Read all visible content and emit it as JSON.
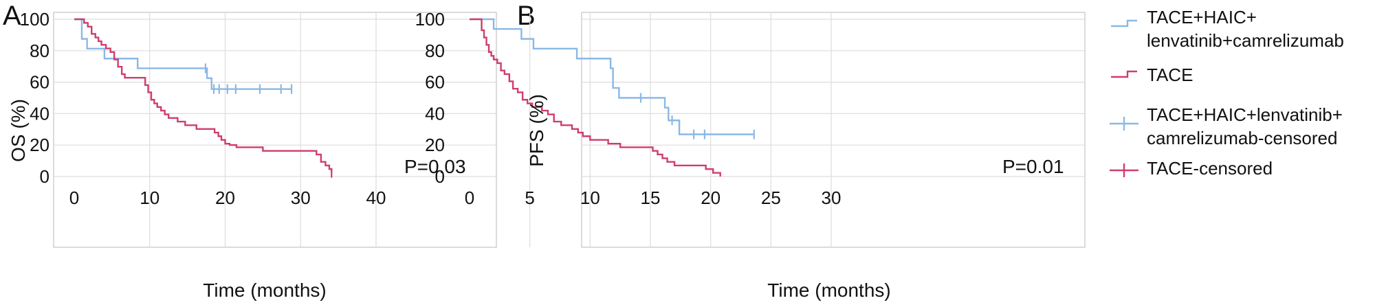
{
  "colors": {
    "combo": "#8ab8e6",
    "tace": "#cf3d6b"
  },
  "legend": [
    {
      "label": "TACE+HAIC+\nlenvatinib+camrelizumab",
      "series": "combo",
      "kind": "line"
    },
    {
      "label": "TACE",
      "series": "tace",
      "kind": "line"
    },
    {
      "label": "TACE+HAIC+lenvatinib+\ncamrelizumab-censored",
      "series": "combo",
      "kind": "censor"
    },
    {
      "label": "TACE-censored",
      "series": "tace",
      "kind": "censor"
    }
  ],
  "chart_data": [
    {
      "type": "line",
      "step": true,
      "panel_label": "A",
      "xlabel": "Time (months)",
      "ylabel": "OS (%)",
      "annotation": "P=0.03",
      "xlim": [
        0,
        40
      ],
      "ylim": [
        0,
        100
      ],
      "xticks": [
        0,
        10,
        20,
        30,
        40
      ],
      "yticks": [
        0,
        20,
        40,
        60,
        80,
        100
      ],
      "grid": true,
      "series": [
        {
          "key": "combo",
          "name": "TACE+HAIC+lenvatinib+camrelizumab",
          "x": [
            0,
            1,
            1.7,
            4,
            8.4,
            17.6,
            18.2,
            28.8
          ],
          "y": [
            100,
            87.5,
            81.3,
            75,
            68.8,
            62.5,
            55.6,
            55.6
          ],
          "censored": [
            [
              17.4,
              68.8
            ],
            [
              18.5,
              55.6
            ],
            [
              19.2,
              55.6
            ],
            [
              20.3,
              55.6
            ],
            [
              21.4,
              55.6
            ],
            [
              24.6,
              55.6
            ],
            [
              27.4,
              55.6
            ],
            [
              28.8,
              55.6
            ]
          ]
        },
        {
          "key": "tace",
          "name": "TACE",
          "x": [
            0,
            1.3,
            1.8,
            2.3,
            2.8,
            3.2,
            3.6,
            4.2,
            4.8,
            5.3,
            5.8,
            6.3,
            6.7,
            9.4,
            9.8,
            10.2,
            10.6,
            11,
            11.5,
            12,
            12.5,
            13.7,
            14.7,
            16.2,
            18.6,
            19.1,
            19.5,
            20,
            20.6,
            21.5,
            25,
            26.3,
            32.1,
            32.7,
            33.3,
            33.8,
            34.1
          ],
          "y": [
            100,
            97.7,
            95.3,
            90.7,
            88.4,
            86,
            83.7,
            81.4,
            79.1,
            74.4,
            69.8,
            65.1,
            62.8,
            58.1,
            53.5,
            48.8,
            46.5,
            44.2,
            41.9,
            39.5,
            37.2,
            34.9,
            32.6,
            30.2,
            27.9,
            25.6,
            23.3,
            20.9,
            20,
            18.6,
            16.3,
            16.3,
            14,
            9.3,
            7,
            4.7,
            2.3
          ],
          "censored": [
            [
              34.1,
              2.3
            ]
          ]
        }
      ]
    },
    {
      "type": "line",
      "step": true,
      "panel_label": "B",
      "xlabel": "Time (months)",
      "ylabel": "PFS (%)",
      "annotation": "P=0.01",
      "xlim": [
        0,
        30
      ],
      "ylim": [
        0,
        100
      ],
      "xticks": [
        0,
        5,
        10,
        15,
        20,
        25,
        30
      ],
      "yticks": [
        0,
        20,
        40,
        60,
        80,
        100
      ],
      "grid": true,
      "series": [
        {
          "key": "combo",
          "name": "TACE+HAIC+lenvatinib+camrelizumab",
          "x": [
            0,
            2,
            4.3,
            5.3,
            8.9,
            11.7,
            11.9,
            12.4,
            16.2,
            16.5,
            17.4,
            23.6
          ],
          "y": [
            100,
            93.8,
            87.5,
            81.3,
            75,
            68.8,
            56.3,
            50,
            43.8,
            35.7,
            26.8,
            26.8
          ],
          "censored": [
            [
              14.2,
              50
            ],
            [
              16.8,
              35.7
            ],
            [
              18.6,
              26.8
            ],
            [
              19.5,
              26.8
            ],
            [
              23.6,
              26.8
            ]
          ]
        },
        {
          "key": "tace",
          "name": "TACE",
          "x": [
            0,
            1,
            1.2,
            1.4,
            1.6,
            1.8,
            2,
            2.3,
            2.6,
            2.9,
            3.3,
            3.6,
            4,
            4.4,
            4.8,
            5.2,
            6,
            6.5,
            7,
            7.6,
            8.5,
            9,
            9.4,
            10,
            11.5,
            12.5,
            15.2,
            15.6,
            16,
            16.4,
            17,
            19.6,
            20.2,
            20.8
          ],
          "y": [
            100,
            93,
            88.4,
            83.7,
            79.1,
            76.7,
            74.4,
            72.1,
            67.4,
            65.1,
            60.5,
            55.8,
            53.5,
            48.8,
            46.5,
            44.2,
            41.9,
            39.5,
            34.9,
            32.6,
            30.2,
            27.9,
            25.6,
            23.3,
            20.9,
            18.6,
            16.3,
            14,
            11.6,
            9.3,
            7,
            4.7,
            2.3,
            0
          ],
          "censored": []
        }
      ]
    }
  ]
}
